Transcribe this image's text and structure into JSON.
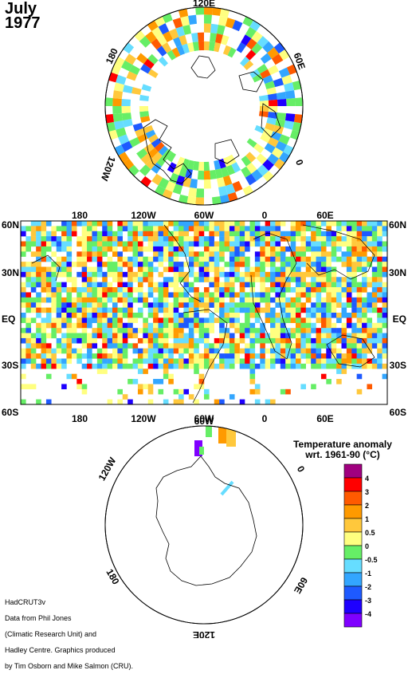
{
  "title_month": "July",
  "title_year": "1977",
  "north_polar": {
    "labels": [
      "120E",
      "60E",
      "0",
      "120W",
      "180"
    ]
  },
  "equirect": {
    "lon_labels": [
      "180",
      "120W",
      "60W",
      "0",
      "60E"
    ],
    "lat_labels": [
      "60N",
      "30N",
      "EQ",
      "30S",
      "60S"
    ]
  },
  "south_polar": {
    "labels": [
      "60W",
      "0",
      "60E",
      "120E",
      "180",
      "120W"
    ]
  },
  "legend": {
    "title_line1": "Temperature anomaly",
    "title_line2": "wrt. 1961-90  (°C)",
    "stops": [
      {
        "label": "4",
        "color": "#a0007f"
      },
      {
        "label": "3",
        "color": "#ff0000"
      },
      {
        "label": "2",
        "color": "#ff5a00"
      },
      {
        "label": "1",
        "color": "#ff9a00"
      },
      {
        "label": "0.5",
        "color": "#ffc83c"
      },
      {
        "label": "0",
        "color": "#ffff80"
      },
      {
        "label": "-0.5",
        "color": "#66ee66"
      },
      {
        "label": "-1",
        "color": "#66ddff"
      },
      {
        "label": "-2",
        "color": "#33a6ff"
      },
      {
        "label": "-3",
        "color": "#1e5aff"
      },
      {
        "label": "-4",
        "color": "#1e00ff"
      },
      {
        "label": "",
        "color": "#7f00ff"
      }
    ]
  },
  "credits": {
    "line1": "HadCRUT3v",
    "line2": "Data from Phil Jones",
    "line3": "(Climatic Research Unit) and",
    "line4": "Hadley Centre.  Graphics produced",
    "line5": "by Tim Osborn and Mike Salmon (CRU)."
  }
}
